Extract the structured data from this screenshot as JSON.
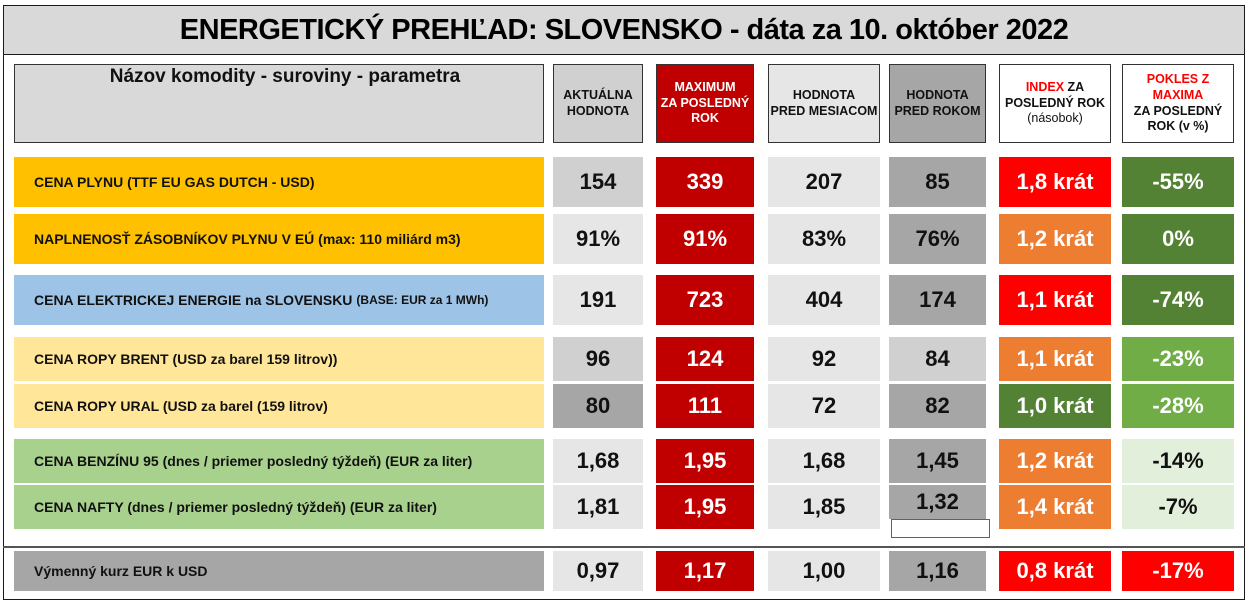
{
  "title": "ENERGETICKÝ PREHĽAD: SLOVENSKO - dáta za 10. október 2022",
  "headers": {
    "name": "Názov komodity - suroviny - parametra",
    "current": [
      "AKTUÁLNA",
      "HODNOTA"
    ],
    "max": [
      "MAXIMUM",
      "ZA POSLEDNÝ",
      "ROK"
    ],
    "month": [
      "HODNOTA",
      "PRED MESIACOM"
    ],
    "year": [
      "HODNOTA",
      "PRED ROKOM"
    ],
    "index": {
      "accent": "INDEX",
      "rest": " ZA",
      "line2": "POSLEDNÝ ROK",
      "line3": "(násobok)"
    },
    "drop": {
      "line1": "POKLES Z",
      "line2": "MAXIMA",
      "line3": "ZA POSLEDNÝ",
      "line4": "ROK (v %)"
    }
  },
  "rows": [
    {
      "name": "CENA PLYNU (TTF EU GAS DUTCH - USD)",
      "note": "",
      "current": "154",
      "max": "339",
      "month": "207",
      "year": "85",
      "index": "1,8 krát",
      "drop": "-55%"
    },
    {
      "name": "NAPLNENOSŤ ZÁSOBNÍKOV PLYNU V EÚ (max: 110 miliárd m3)",
      "note": "",
      "current": "91%",
      "max": "91%",
      "month": "83%",
      "year": "76%",
      "index": "1,2 krát",
      "drop": "0%"
    },
    {
      "name": "CENA ELEKTRICKEJ ENERGIE na SLOVENSKU",
      "note": "(BASE: EUR za 1 MWh)",
      "current": "191",
      "max": "723",
      "month": "404",
      "year": "174",
      "index": "1,1 krát",
      "drop": "-74%"
    },
    {
      "name": "CENA ROPY BRENT (USD za barel 159 litrov))",
      "note": "",
      "current": "96",
      "max": "124",
      "month": "92",
      "year": "84",
      "index": "1,1 krát",
      "drop": "-23%"
    },
    {
      "name": "CENA ROPY URAL (USD za barel (159 litrov)",
      "note": "",
      "current": "80",
      "max": "111",
      "month": "72",
      "year": "82",
      "index": "1,0 krát",
      "drop": "-28%"
    },
    {
      "name": "CENA BENZÍNU 95 (dnes / priemer posledný týždeň) (EUR za liter)",
      "note": "",
      "current": "1,68",
      "max": "1,95",
      "month": "1,68",
      "year": "1,45",
      "index": "1,2 krát",
      "drop": "-14%"
    },
    {
      "name": "CENA NAFTY (dnes / priemer posledný týždeň) (EUR za liter)",
      "note": "",
      "current": "1,81",
      "max": "1,95",
      "month": "1,85",
      "year": "1,32",
      "index": "1,4 krát",
      "drop": "-7%"
    },
    {
      "name": "Výmenný kurz EUR k USD",
      "note": "",
      "current": "0,97",
      "max": "1,17",
      "month": "1,00",
      "year": "1,16",
      "index": "0,8 krát",
      "drop": "-17%"
    }
  ],
  "colors": {
    "gas": "#ffc000",
    "electricity": "#9dc3e6",
    "oil": "#ffe699",
    "fuel": "#a9d18e",
    "exchange": "#a6a6a6",
    "current_cell": "#d0d0d0",
    "max_cell": "#c00000",
    "month_cell": "#e7e6e6",
    "year_cell": "#a6a6a6",
    "index_red": "#ff0000",
    "index_orange": "#ed7d31",
    "index_green": "#548235",
    "drop_dark_green": "#548235",
    "drop_mid_green": "#70ad47",
    "drop_light_green": "#e2efda",
    "drop_red": "#ff0000",
    "header_accent_red": "#ff0000"
  }
}
